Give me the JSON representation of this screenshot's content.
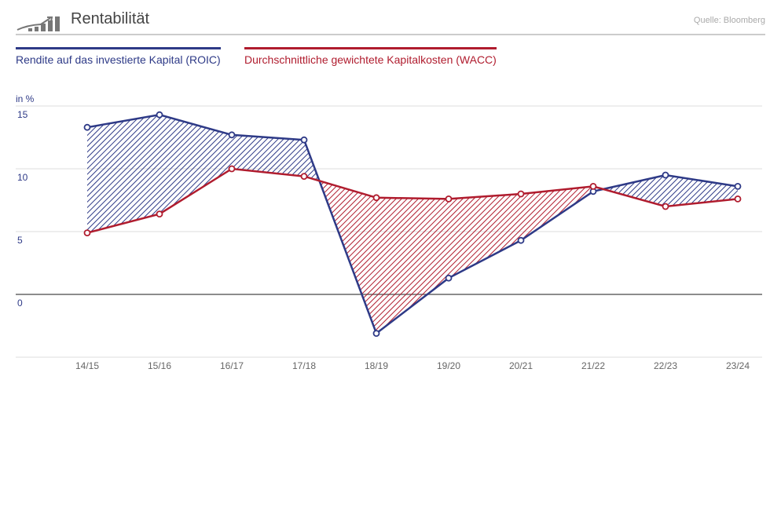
{
  "header": {
    "title": "Rentabilität",
    "source": "Quelle: Bloomberg",
    "icon": "chart-growth-icon"
  },
  "chart_data": {
    "type": "line",
    "title": "Rentabilität",
    "ylabel": "in %",
    "ylim": [
      -5,
      15
    ],
    "yticks": [
      "15",
      "10",
      "5",
      "0"
    ],
    "grid": true,
    "legend": "top-left",
    "categories": [
      "14/15",
      "15/16",
      "16/17",
      "17/18",
      "18/19",
      "19/20",
      "20/21",
      "21/22",
      "22/23",
      "23/24"
    ],
    "series": [
      {
        "name": "Rendite auf das investierte Kapital (ROIC)",
        "color": "#2e3a87",
        "values": [
          13.3,
          14.3,
          12.7,
          12.3,
          -3.1,
          1.3,
          4.3,
          8.2,
          9.5,
          8.6
        ]
      },
      {
        "name": "Durchschnittliche gewichtete Kapitalkosten (WACC)",
        "color": "#b01c2e",
        "values": [
          4.9,
          6.4,
          10.0,
          9.4,
          7.7,
          7.6,
          8.0,
          8.6,
          7.0,
          7.6
        ]
      }
    ]
  }
}
